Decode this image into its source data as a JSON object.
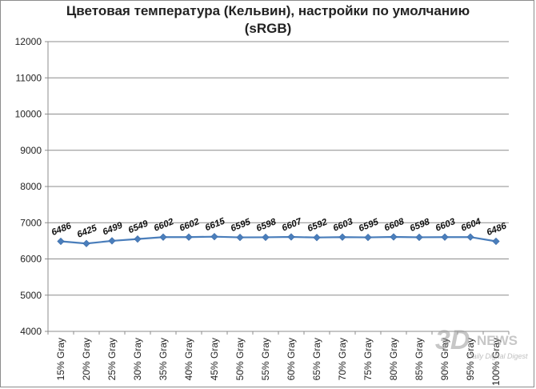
{
  "chart_data": {
    "type": "line",
    "title_line1": "Цветовая температура (Кельвин),  настройки по умолчанию",
    "title_line2": "(sRGB)",
    "xlabel": "",
    "ylabel": "",
    "ylim": [
      4000,
      12000
    ],
    "yticks": [
      "4000",
      "5000",
      "6000",
      "7000",
      "8000",
      "9000",
      "10000",
      "11000",
      "12000"
    ],
    "grid": true,
    "legend": "none",
    "categories": [
      "15% Gray",
      "20% Gray",
      "25% Gray",
      "30% Gray",
      "35% Gray",
      "40% Gray",
      "45% Gray",
      "50% Gray",
      "55% Gray",
      "60% Gray",
      "65% Gray",
      "70% Gray",
      "75% Gray",
      "80% Gray",
      "85% Gray",
      "90% Gray",
      "95% Gray",
      "100% Gray"
    ],
    "series": [
      {
        "values": [
          6486,
          6425,
          6499,
          6549,
          6602,
          6602,
          6615,
          6595,
          6598,
          6607,
          6592,
          6603,
          6595,
          6608,
          6598,
          6603,
          6604,
          6486
        ],
        "color": "#4a7ebb"
      }
    ]
  },
  "watermark": {
    "logo": "3D",
    "brand": "NEWS",
    "tagline": "Daily Digital Digest"
  }
}
